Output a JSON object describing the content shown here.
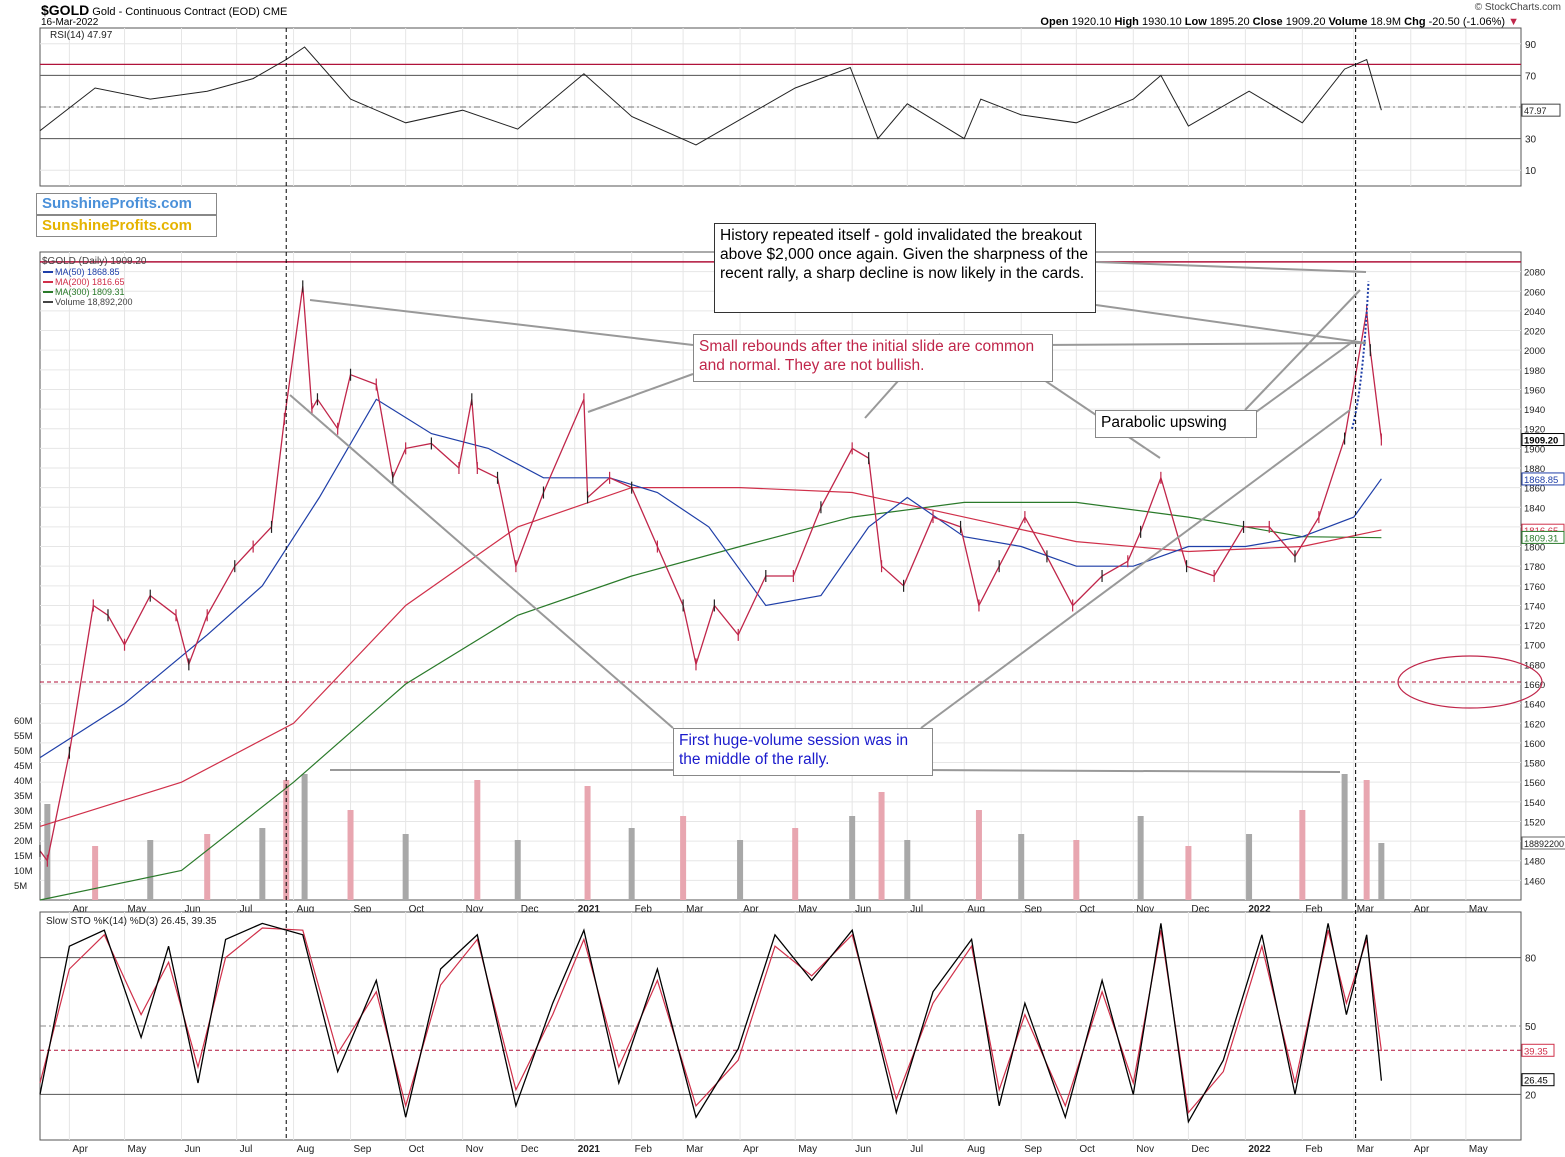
{
  "header": {
    "symbol": "$GOLD",
    "name": "Gold - Continuous Contract (EOD)",
    "exchange": "CME",
    "date": "16-Mar-2022",
    "open_label": "Open",
    "open": "1920.10",
    "high_label": "High",
    "high": "1930.10",
    "low_label": "Low",
    "low": "1895.20",
    "close_label": "Close",
    "close": "1909.20",
    "volume_label": "Volume",
    "volume": "18.9M",
    "chg_label": "Chg",
    "chg": "-20.50 (-1.06%)",
    "copyright": "© StockCharts.com"
  },
  "logos": [
    "SunshineProfits.com",
    "SunshineProfits.com"
  ],
  "annotations": {
    "history": "History repeated itself - gold invalidated the breakout above $2,000 once again. Given the sharpness of the recent rally, a sharp decline is now likely in the cards.",
    "rebounds": "Small rebounds after the initial slide are common and normal. They are not bullish.",
    "parabolic": "Parabolic upswing",
    "volume": "First huge-volume session was in the middle of the rally."
  },
  "colors": {
    "up": "#222222",
    "down": "#c0264a",
    "ma50": "#1f3fa8",
    "ma200": "#d0304a",
    "ma300": "#2a7a2a",
    "rsi": "#222222",
    "resistance": "#b0123a",
    "sto_k": "#000000",
    "sto_d": "#d0304a",
    "vol_up": "#a8a8a8",
    "vol_down": "#e8a6b0",
    "grid": "#e6e6e6"
  },
  "chart_data": [
    {
      "type": "line",
      "panel": "rsi",
      "legend": "RSI(14) 47.97",
      "ylim": [
        0,
        100
      ],
      "yticks": [
        10,
        30,
        50,
        70,
        90
      ],
      "current_value_label": "47.97",
      "levels": [
        30,
        50,
        70,
        77
      ],
      "x": [
        "2020-03-16",
        "2020-04-15",
        "2020-05-15",
        "2020-06-15",
        "2020-07-10",
        "2020-07-28",
        "2020-08-07",
        "2020-09-01",
        "2020-10-01",
        "2020-11-01",
        "2020-12-01",
        "2021-01-06",
        "2021-02-01",
        "2021-03-08",
        "2021-04-01",
        "2021-05-01",
        "2021-05-31",
        "2021-06-15",
        "2021-07-01",
        "2021-08-01",
        "2021-08-10",
        "2021-09-01",
        "2021-10-01",
        "2021-11-01",
        "2021-11-16",
        "2021-12-01",
        "2022-01-03",
        "2022-02-01",
        "2022-02-24",
        "2022-03-08",
        "2022-03-16"
      ],
      "values": [
        35,
        62,
        55,
        60,
        68,
        80,
        88,
        55,
        40,
        48,
        36,
        71,
        44,
        26,
        42,
        62,
        75,
        30,
        52,
        30,
        55,
        45,
        40,
        55,
        70,
        38,
        60,
        40,
        74,
        80,
        48
      ]
    },
    {
      "type": "line",
      "panel": "price",
      "title": "$GOLD (Daily) 1909.20",
      "ylim": [
        1440,
        2100
      ],
      "yticks": [
        1460,
        1480,
        1500,
        1520,
        1540,
        1560,
        1580,
        1600,
        1620,
        1640,
        1660,
        1680,
        1700,
        1720,
        1740,
        1760,
        1780,
        1800,
        1820,
        1840,
        1860,
        1880,
        1900,
        1920,
        1940,
        1960,
        1980,
        2000,
        2020,
        2040,
        2060,
        2080
      ],
      "xtick_labels": [
        "Apr",
        "May",
        "Jun",
        "Jul",
        "Aug",
        "Sep",
        "Oct",
        "Nov",
        "Dec",
        "2021",
        "Feb",
        "Mar",
        "Apr",
        "May",
        "Jun",
        "Jul",
        "Aug",
        "Sep",
        "Oct",
        "Nov",
        "Dec",
        "2022",
        "Feb",
        "Mar",
        "Apr",
        "May"
      ],
      "xticks": [
        "2020-04-01",
        "2020-05-01",
        "2020-06-01",
        "2020-07-01",
        "2020-08-01",
        "2020-09-01",
        "2020-10-01",
        "2020-11-01",
        "2020-12-01",
        "2021-01-01",
        "2021-02-01",
        "2021-03-01",
        "2021-04-01",
        "2021-05-01",
        "2021-06-01",
        "2021-07-01",
        "2021-08-01",
        "2021-09-01",
        "2021-10-01",
        "2021-11-01",
        "2021-12-01",
        "2022-01-01",
        "2022-02-01",
        "2022-03-01",
        "2022-04-01",
        "2022-05-01"
      ],
      "x_range": [
        "2020-03-16",
        "2022-05-31"
      ],
      "resistance": 2090,
      "support": 1662,
      "current_labels": {
        "close": "1909.20",
        "ma50": "1868.85",
        "ma200": "1816.65",
        "ma300": "1809.31",
        "volume": "18892200"
      },
      "series": [
        {
          "name": "$GOLD (Daily) 1909.20",
          "x": [
            "2020-03-16",
            "2020-03-20",
            "2020-04-01",
            "2020-04-14",
            "2020-04-22",
            "2020-05-01",
            "2020-05-15",
            "2020-05-29",
            "2020-06-05",
            "2020-06-15",
            "2020-06-30",
            "2020-07-10",
            "2020-07-20",
            "2020-07-27",
            "2020-08-06",
            "2020-08-11",
            "2020-08-14",
            "2020-08-25",
            "2020-09-01",
            "2020-09-15",
            "2020-09-24",
            "2020-10-01",
            "2020-10-15",
            "2020-10-30",
            "2020-11-06",
            "2020-11-09",
            "2020-11-20",
            "2020-11-30",
            "2020-12-15",
            "2021-01-06",
            "2021-01-08",
            "2021-01-20",
            "2021-02-01",
            "2021-02-15",
            "2021-03-01",
            "2021-03-08",
            "2021-03-18",
            "2021-03-31",
            "2021-04-15",
            "2021-04-30",
            "2021-05-15",
            "2021-06-01",
            "2021-06-10",
            "2021-06-17",
            "2021-06-29",
            "2021-07-15",
            "2021-07-30",
            "2021-08-09",
            "2021-08-20",
            "2021-09-03",
            "2021-09-15",
            "2021-09-29",
            "2021-10-15",
            "2021-10-29",
            "2021-11-05",
            "2021-11-16",
            "2021-11-30",
            "2021-12-15",
            "2021-12-31",
            "2022-01-14",
            "2022-01-28",
            "2022-02-10",
            "2022-02-24",
            "2022-03-08",
            "2022-03-10",
            "2022-03-16"
          ],
          "values": [
            1490,
            1480,
            1590,
            1740,
            1730,
            1700,
            1750,
            1730,
            1680,
            1730,
            1780,
            1800,
            1820,
            1930,
            2065,
            1940,
            1950,
            1920,
            1975,
            1965,
            1870,
            1900,
            1905,
            1880,
            1950,
            1880,
            1870,
            1780,
            1855,
            1950,
            1850,
            1870,
            1860,
            1800,
            1740,
            1680,
            1740,
            1710,
            1770,
            1770,
            1840,
            1900,
            1890,
            1780,
            1760,
            1830,
            1820,
            1740,
            1780,
            1830,
            1790,
            1740,
            1770,
            1785,
            1815,
            1870,
            1780,
            1770,
            1820,
            1820,
            1790,
            1830,
            1910,
            2040,
            2000,
            1909
          ]
        },
        {
          "name": "MA(50) 1868.85",
          "x": [
            "2020-03-16",
            "2020-05-01",
            "2020-06-15",
            "2020-07-15",
            "2020-08-15",
            "2020-09-15",
            "2020-10-15",
            "2020-11-15",
            "2020-12-15",
            "2021-01-20",
            "2021-02-15",
            "2021-03-15",
            "2021-04-15",
            "2021-05-15",
            "2021-06-10",
            "2021-07-01",
            "2021-08-01",
            "2021-09-01",
            "2021-10-01",
            "2021-11-01",
            "2021-12-01",
            "2022-01-01",
            "2022-02-01",
            "2022-03-01",
            "2022-03-16"
          ],
          "values": [
            1585,
            1640,
            1710,
            1760,
            1850,
            1950,
            1915,
            1900,
            1870,
            1870,
            1855,
            1820,
            1740,
            1750,
            1820,
            1850,
            1810,
            1800,
            1780,
            1780,
            1800,
            1800,
            1810,
            1830,
            1869
          ]
        },
        {
          "name": "MA(200) 1816.65",
          "x": [
            "2020-03-16",
            "2020-06-01",
            "2020-08-01",
            "2020-10-01",
            "2020-12-01",
            "2021-02-01",
            "2021-04-01",
            "2021-06-01",
            "2021-08-01",
            "2021-10-01",
            "2021-12-01",
            "2022-02-01",
            "2022-03-16"
          ],
          "values": [
            1515,
            1560,
            1620,
            1740,
            1820,
            1860,
            1860,
            1855,
            1830,
            1805,
            1795,
            1800,
            1817
          ]
        },
        {
          "name": "MA(300) 1809.31",
          "x": [
            "2020-03-16",
            "2020-06-01",
            "2020-08-01",
            "2020-10-01",
            "2020-12-01",
            "2021-02-01",
            "2021-04-01",
            "2021-06-01",
            "2021-08-01",
            "2021-10-01",
            "2021-12-01",
            "2022-02-01",
            "2022-03-16"
          ],
          "values": [
            1440,
            1470,
            1560,
            1660,
            1730,
            1770,
            1800,
            1830,
            1845,
            1845,
            1830,
            1810,
            1809
          ]
        }
      ]
    },
    {
      "type": "bar",
      "panel": "volume",
      "name": "Volume 18,892,200",
      "ylim": [
        0,
        70
      ],
      "ylabel_ticks": [
        "5M",
        "10M",
        "15M",
        "20M",
        "25M",
        "30M",
        "35M",
        "40M",
        "45M",
        "50M",
        "55M",
        "60M"
      ],
      "x": [
        "2020-03-20",
        "2020-04-15",
        "2020-05-15",
        "2020-06-15",
        "2020-07-15",
        "2020-07-28",
        "2020-08-07",
        "2020-09-01",
        "2020-10-01",
        "2020-11-09",
        "2020-12-01",
        "2021-01-08",
        "2021-02-01",
        "2021-03-01",
        "2021-04-01",
        "2021-05-01",
        "2021-06-01",
        "2021-06-17",
        "2021-07-01",
        "2021-08-09",
        "2021-09-01",
        "2021-10-01",
        "2021-11-05",
        "2021-12-01",
        "2022-01-03",
        "2022-02-01",
        "2022-02-24",
        "2022-03-08",
        "2022-03-16"
      ],
      "values": [
        32,
        18,
        20,
        22,
        24,
        40,
        42,
        30,
        22,
        40,
        20,
        38,
        24,
        28,
        20,
        24,
        28,
        36,
        20,
        30,
        22,
        20,
        28,
        18,
        22,
        30,
        42,
        40,
        19
      ]
    },
    {
      "type": "line",
      "panel": "stochastic",
      "legend": "Slow STO %K(14) %D(3) 26.45, 39.35",
      "ylim": [
        0,
        100
      ],
      "yticks": [
        20,
        50,
        80
      ],
      "levels": [
        20,
        50,
        80,
        39.35
      ],
      "current_labels": {
        "k": "26.45",
        "d": "39.35"
      },
      "series": [
        {
          "name": "%K",
          "x": [
            "2020-03-16",
            "2020-04-01",
            "2020-04-20",
            "2020-05-10",
            "2020-05-25",
            "2020-06-10",
            "2020-06-25",
            "2020-07-15",
            "2020-08-06",
            "2020-08-25",
            "2020-09-15",
            "2020-10-01",
            "2020-10-20",
            "2020-11-09",
            "2020-11-30",
            "2020-12-20",
            "2021-01-06",
            "2021-01-25",
            "2021-02-15",
            "2021-03-08",
            "2021-03-31",
            "2021-04-20",
            "2021-05-10",
            "2021-06-01",
            "2021-06-25",
            "2021-07-15",
            "2021-08-05",
            "2021-08-20",
            "2021-09-03",
            "2021-09-25",
            "2021-10-15",
            "2021-11-01",
            "2021-11-16",
            "2021-12-01",
            "2021-12-20",
            "2022-01-10",
            "2022-01-28",
            "2022-02-15",
            "2022-02-25",
            "2022-03-08",
            "2022-03-16"
          ],
          "values": [
            20,
            85,
            92,
            45,
            85,
            25,
            88,
            95,
            90,
            30,
            70,
            10,
            75,
            90,
            15,
            60,
            92,
            25,
            75,
            10,
            40,
            90,
            70,
            92,
            12,
            65,
            88,
            15,
            60,
            10,
            70,
            20,
            95,
            8,
            35,
            90,
            20,
            95,
            55,
            90,
            26
          ]
        },
        {
          "name": "%D",
          "x": [
            "2020-03-16",
            "2020-04-01",
            "2020-04-20",
            "2020-05-10",
            "2020-05-25",
            "2020-06-10",
            "2020-06-25",
            "2020-07-15",
            "2020-08-06",
            "2020-08-25",
            "2020-09-15",
            "2020-10-01",
            "2020-10-20",
            "2020-11-09",
            "2020-11-30",
            "2020-12-20",
            "2021-01-06",
            "2021-01-25",
            "2021-02-15",
            "2021-03-08",
            "2021-03-31",
            "2021-04-20",
            "2021-05-10",
            "2021-06-01",
            "2021-06-25",
            "2021-07-15",
            "2021-08-05",
            "2021-08-20",
            "2021-09-03",
            "2021-09-25",
            "2021-10-15",
            "2021-11-01",
            "2021-11-16",
            "2021-12-01",
            "2021-12-20",
            "2022-01-10",
            "2022-01-28",
            "2022-02-15",
            "2022-02-25",
            "2022-03-08",
            "2022-03-16"
          ],
          "values": [
            25,
            75,
            90,
            55,
            78,
            32,
            80,
            93,
            92,
            38,
            65,
            15,
            68,
            88,
            22,
            55,
            88,
            32,
            70,
            15,
            35,
            85,
            72,
            90,
            18,
            60,
            85,
            22,
            55,
            15,
            65,
            25,
            92,
            12,
            30,
            85,
            25,
            92,
            60,
            88,
            39
          ]
        }
      ]
    }
  ]
}
